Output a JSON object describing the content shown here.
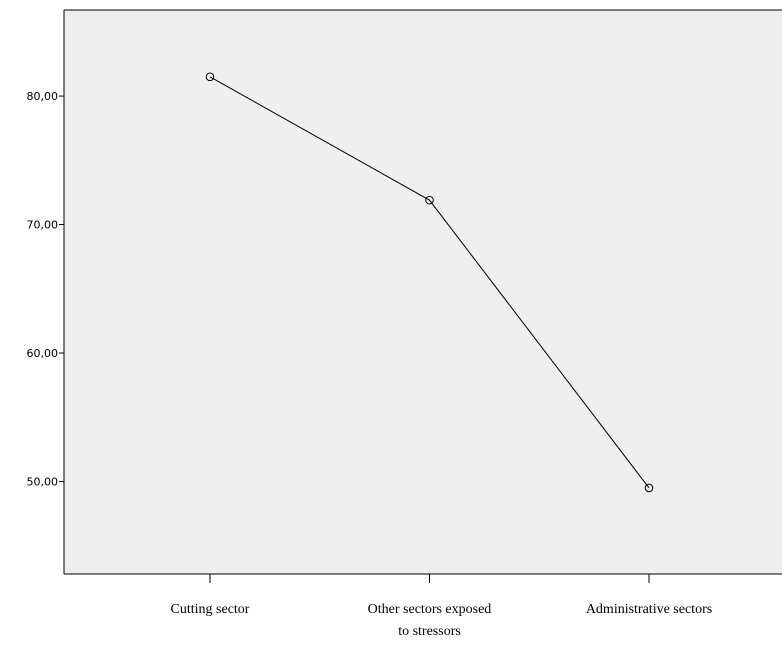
{
  "chart_data": {
    "type": "line",
    "title": "",
    "xlabel": "",
    "ylabel": "",
    "categories": [
      [
        "Cutting sector"
      ],
      [
        "Other sectors exposed",
        "to stressors"
      ],
      [
        "Administrative sectors"
      ]
    ],
    "series": [
      {
        "values": [
          81.5,
          71.9,
          49.5
        ]
      }
    ],
    "ylim": [
      42.8,
      86.7
    ],
    "yticks": [
      {
        "value": 50,
        "label": "50,00"
      },
      {
        "value": 60,
        "label": "60,00"
      },
      {
        "value": 70,
        "label": "70,00"
      },
      {
        "value": 80,
        "label": "80,00"
      }
    ],
    "plot_background": "#efefef",
    "line_color": "#000000",
    "grid": false,
    "legend": "none"
  }
}
